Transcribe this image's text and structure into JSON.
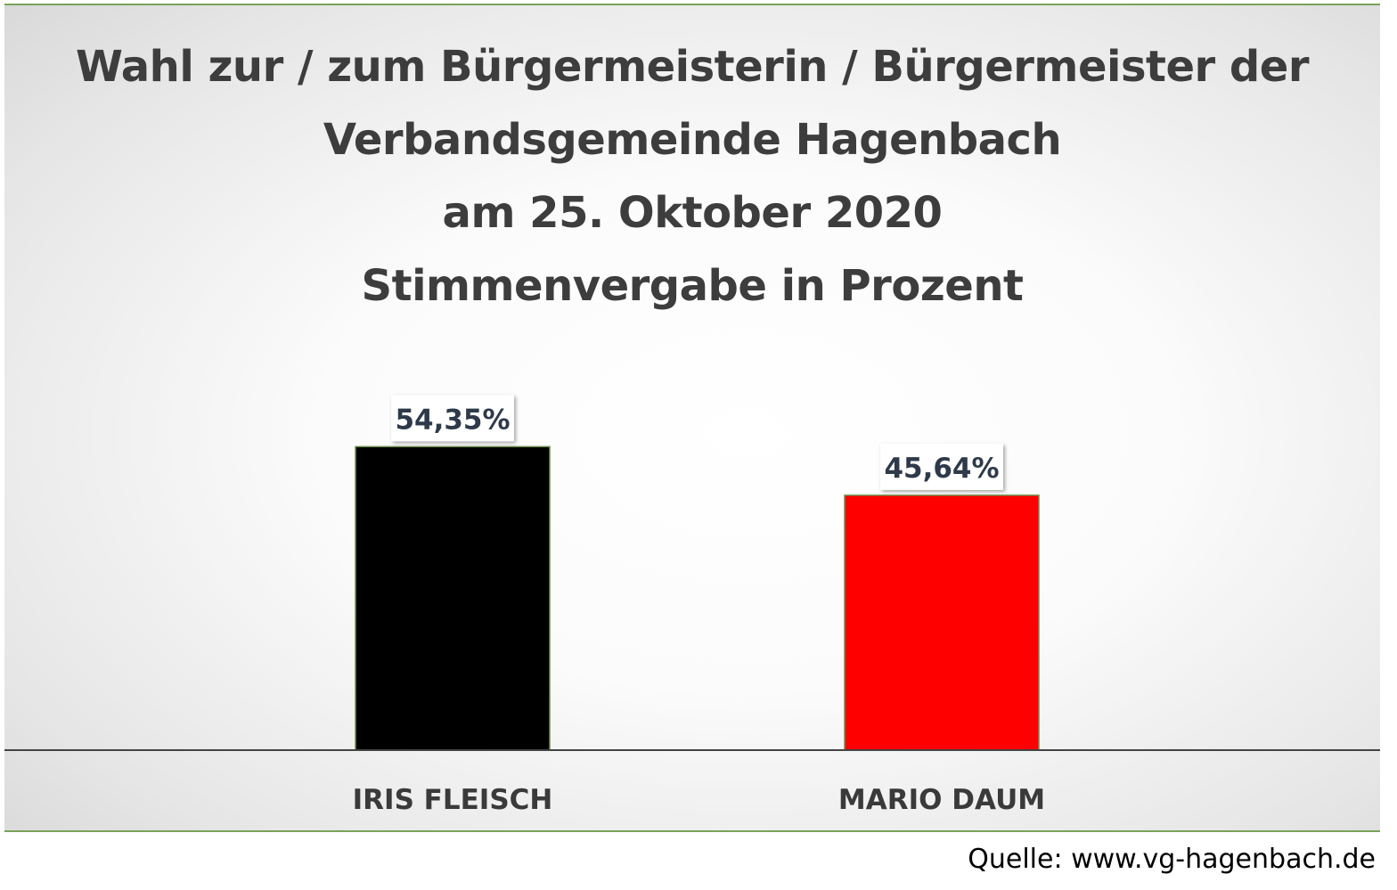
{
  "chart_data": {
    "type": "bar",
    "title": [
      "Wahl zur / zum Bürgermeisterin / Bürgermeister  der",
      "Verbandsgemeinde Hagenbach",
      "am 25. Oktober 2020",
      "Stimmenvergabe in Prozent"
    ],
    "categories": [
      "IRIS FLEISCH",
      "MARIO DAUM"
    ],
    "values": [
      54.35,
      45.64
    ],
    "data_labels": [
      "54,35%",
      "45,64%"
    ],
    "bar_colors": [
      "#000000",
      "#ff0000"
    ],
    "ylim": [
      0,
      100
    ],
    "xlabel": "",
    "ylabel": "",
    "grid": false,
    "legend": "none"
  },
  "source": "Quelle: www.vg-hagenbach.de"
}
